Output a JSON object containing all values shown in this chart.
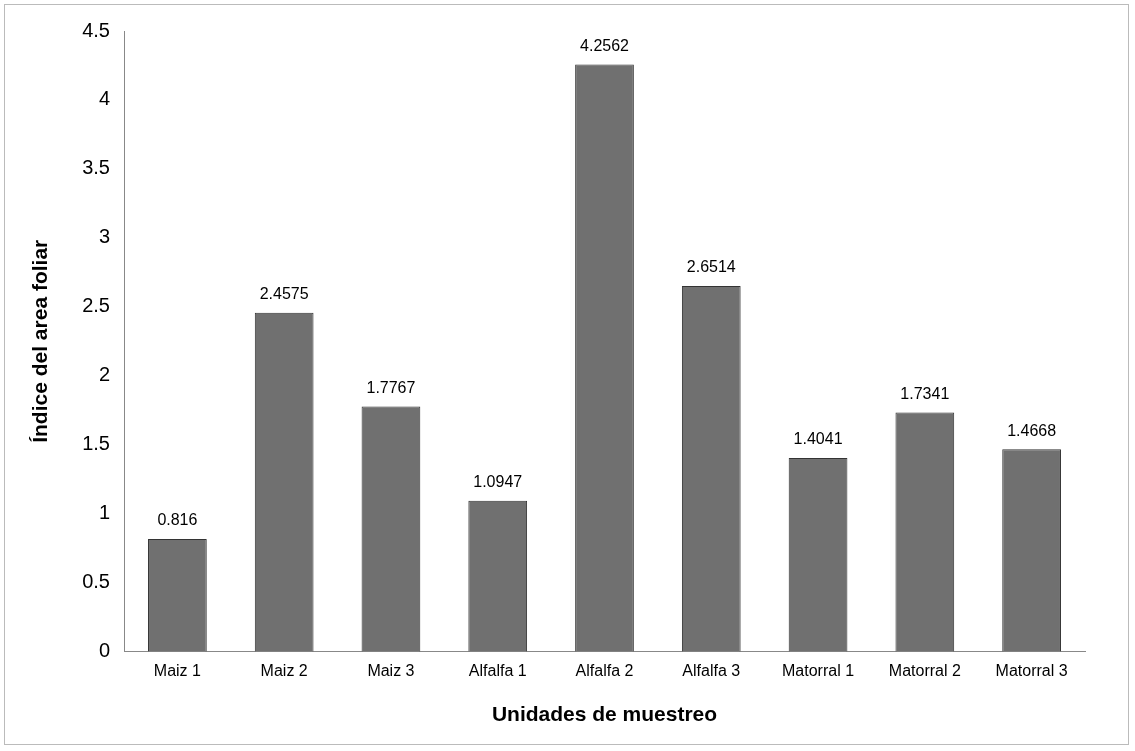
{
  "chart_data": {
    "type": "bar",
    "xlabel": "Unidades de muestreo",
    "ylabel": "Índice del area foliar",
    "categories": [
      "Maiz 1",
      "Maiz 2",
      "Maiz 3",
      "Alfalfa 1",
      "Alfalfa 2",
      "Alfalfa 3",
      "Matorral 1",
      "Matorral 2",
      "Matorral 3"
    ],
    "values": [
      0.816,
      2.4575,
      1.7767,
      1.0947,
      4.2562,
      2.6514,
      1.4041,
      1.7341,
      1.4668
    ],
    "color": "#707070",
    "ylim": [
      0,
      4.5
    ],
    "yticks": [
      0,
      0.5,
      1,
      1.5,
      2,
      2.5,
      3,
      3.5,
      4,
      4.5
    ],
    "grid": false,
    "legend": false,
    "data_labels": true
  }
}
